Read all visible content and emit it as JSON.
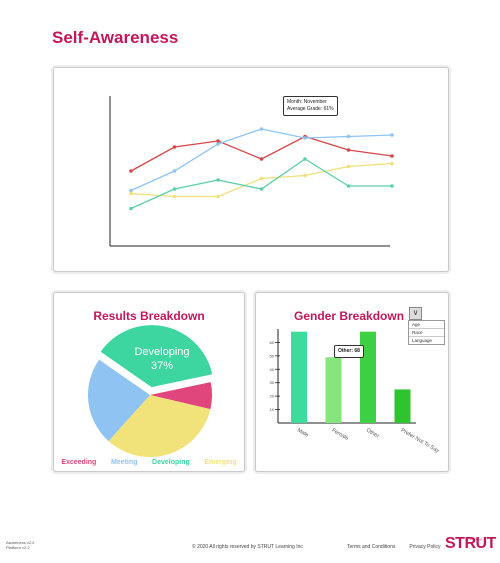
{
  "page_title": "Self-Awareness",
  "line_chart": {
    "tooltip_line1": "Month: November",
    "tooltip_line2": "Average Grade: 61%"
  },
  "pie_card": {
    "title": "Results Breakdown",
    "callout_label": "Developing",
    "callout_value": "37%",
    "legend": [
      {
        "label": "Exceeding",
        "color": "#e0457b"
      },
      {
        "label": "Meeting",
        "color": "#8ec3f2"
      },
      {
        "label": "Developing",
        "color": "#3dd6a0"
      },
      {
        "label": "Emerging",
        "color": "#f2e27a"
      }
    ]
  },
  "bar_card": {
    "title": "Gender Breakdown",
    "dropdown_options": [
      "Age",
      "Race",
      "Language"
    ],
    "tooltip": "Other: 68",
    "y_ticks": [
      "60",
      "50",
      "40",
      "30",
      "20",
      "10"
    ]
  },
  "footer": {
    "version_line1": "Awareness v2.2",
    "version_line2": "Platform v2.2",
    "copyright": "© 2020 All rights reserved by STRUT Learning Inc",
    "terms": "Terms and Conditions",
    "privacy": "Privacy Policy",
    "logo": "STRUT",
    "logo_sub": "Learning"
  },
  "chart_data": [
    {
      "type": "line",
      "title": "",
      "xlabel": "",
      "ylabel": "",
      "x": [
        1,
        2,
        3,
        4,
        5,
        6,
        7
      ],
      "ylim": [
        0,
        100
      ],
      "grid": false,
      "series": [
        {
          "color": "#d24848",
          "values": [
            50,
            66,
            70,
            58,
            73,
            64,
            60
          ]
        },
        {
          "color": "#8ec3f2",
          "values": [
            37,
            50,
            68,
            78,
            72,
            73,
            74
          ]
        },
        {
          "color": "#f0e07a",
          "values": [
            35,
            33,
            33,
            45,
            47,
            53,
            55
          ]
        },
        {
          "color": "#5ccfa8",
          "values": [
            25,
            38,
            44,
            38,
            58,
            40,
            40
          ]
        }
      ],
      "annotation": "Month: November / Average Grade: 61%"
    },
    {
      "type": "pie",
      "title": "Results Breakdown",
      "slices": [
        {
          "label": "Exceeding",
          "value": 7,
          "color": "#e0457b"
        },
        {
          "label": "Meeting",
          "value": 23,
          "color": "#8ec3f2"
        },
        {
          "label": "Developing",
          "value": 37,
          "color": "#3dd6a0"
        },
        {
          "label": "Emerging",
          "value": 33,
          "color": "#f2e27a"
        }
      ],
      "legend_position": "bottom"
    },
    {
      "type": "bar",
      "title": "Gender Breakdown",
      "categories": [
        "Male",
        "Female",
        "Other",
        "Prefer Not To Say"
      ],
      "values": [
        68,
        49,
        68,
        25
      ],
      "colors": [
        "#3ddb9c",
        "#86e57d",
        "#3fcf45",
        "#2fc42f"
      ],
      "ylim": [
        0,
        70
      ],
      "grid": false
    }
  ]
}
